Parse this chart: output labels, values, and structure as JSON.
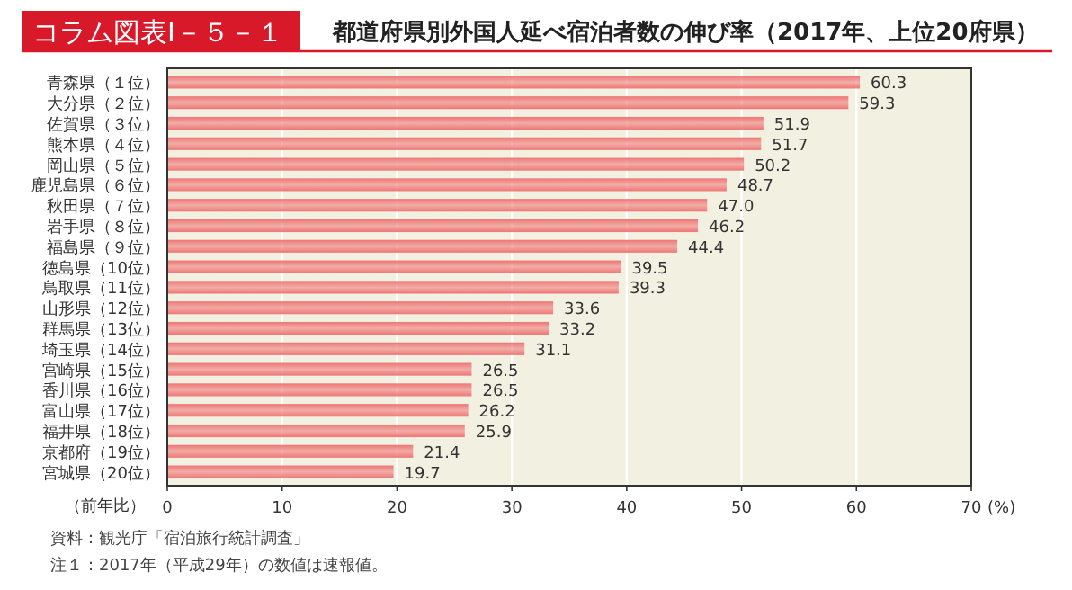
{
  "chart_data": {
    "type": "bar",
    "orientation": "horizontal",
    "title": "コラム図表Ⅰ－５－１",
    "subtitle": "都道府県別外国人延べ宿泊者数の伸び率（2017年、上位20府県）",
    "categories": [
      "青森県（１位）",
      "大分県（２位）",
      "佐賀県（３位）",
      "熊本県（４位）",
      "岡山県（５位）",
      "鹿児島県（６位）",
      "秋田県（７位）",
      "岩手県（８位）",
      "福島県（９位）",
      "徳島県（10位）",
      "鳥取県（11位）",
      "山形県（12位）",
      "群馬県（13位）",
      "埼玉県（14位）",
      "宮崎県（15位）",
      "香川県（16位）",
      "富山県（17位）",
      "福井県（18位）",
      "京都府（19位）",
      "宮城県（20位）"
    ],
    "values": [
      60.3,
      59.3,
      51.9,
      51.7,
      50.2,
      48.7,
      47.0,
      46.2,
      44.4,
      39.5,
      39.3,
      33.6,
      33.2,
      31.1,
      26.5,
      26.5,
      26.2,
      25.9,
      21.4,
      19.7
    ],
    "value_labels": [
      "60.3",
      "59.3",
      "51.9",
      "51.7",
      "50.2",
      "48.7",
      "47.0",
      "46.2",
      "44.4",
      "39.5",
      "39.3",
      "33.6",
      "33.2",
      "31.1",
      "26.5",
      "26.5",
      "26.2",
      "25.9",
      "21.4",
      "19.7"
    ],
    "color": "#ef7676",
    "xlim": [
      0,
      70
    ],
    "xticks": [
      0,
      10,
      20,
      30,
      40,
      50,
      60,
      70
    ],
    "grid": "x",
    "xlabel": "(%)",
    "ylabel": "（前年比）",
    "annotations": [
      "資料：観光庁「宿泊旅行統計調査」",
      "注１：2017年（平成29年）の数値は速報値。"
    ]
  }
}
